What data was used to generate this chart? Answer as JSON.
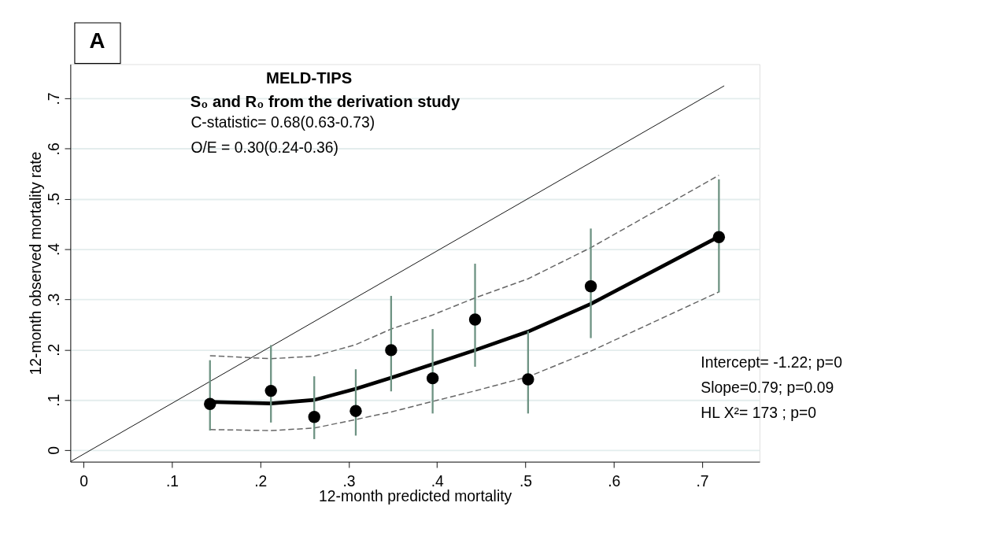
{
  "chart_data": {
    "type": "scatter",
    "title": "MELD-TIPS",
    "subtitle": "S₀ and R₀ from the derivation study",
    "xlabel": "12-month predicted mortality",
    "ylabel": "12-month observed mortality rate",
    "annotations": [
      "A",
      "C-statistic= 0.68(0.63-0.73)",
      "O/E = 0.30(0.24-0.36)",
      "Intercept= -1.22; p=0",
      "Slope=0.79; p=0.09",
      "HL X²= 173 ; p=0"
    ],
    "xlim": [
      -0.015,
      0.765
    ],
    "ylim": [
      -0.023,
      0.768
    ],
    "xticks": [
      0,
      {
        "value": 0.1,
        "label": ".1"
      },
      {
        "value": 0.2,
        "label": ".2"
      },
      {
        "value": 0.3,
        "label": ".3"
      },
      {
        "value": 0.4,
        "label": ".4"
      },
      {
        "value": 0.5,
        "label": ".5"
      },
      {
        "value": 0.6,
        "label": ".6"
      },
      {
        "value": 0.7,
        "label": ".7"
      }
    ],
    "yticks": [
      0,
      {
        "value": 0.1,
        "label": ".1"
      },
      {
        "value": 0.2,
        "label": ".2"
      },
      {
        "value": 0.3,
        "label": ".3"
      },
      {
        "value": 0.4,
        "label": ".4"
      },
      {
        "value": 0.5,
        "label": ".5"
      },
      {
        "value": 0.6,
        "label": ".6"
      },
      {
        "value": 0.7,
        "label": ".7"
      }
    ],
    "grid": "y",
    "series": [
      {
        "type": "line",
        "color": "#000000",
        "line_style": "solid",
        "x": [
          -0.015,
          0.725
        ],
        "values": [
          -0.023,
          0.725
        ]
      },
      {
        "type": "line",
        "color": "#000000",
        "line_style": "solid",
        "x": [
          0.143,
          0.212,
          0.261,
          0.308,
          0.348,
          0.395,
          0.443,
          0.503,
          0.574,
          0.719
        ],
        "values": [
          0.096,
          0.093,
          0.1,
          0.122,
          0.144,
          0.171,
          0.199,
          0.236,
          0.291,
          0.425
        ]
      },
      {
        "type": "line",
        "color": "#666666",
        "line_style": "dashed",
        "x": [
          0.143,
          0.212,
          0.261,
          0.308,
          0.348,
          0.395,
          0.443,
          0.503,
          0.574,
          0.719
        ],
        "values": [
          0.188,
          0.182,
          0.187,
          0.21,
          0.241,
          0.269,
          0.303,
          0.341,
          0.403,
          0.547
        ]
      },
      {
        "type": "line",
        "color": "#666666",
        "line_style": "dashed",
        "x": [
          0.143,
          0.212,
          0.261,
          0.308,
          0.348,
          0.395,
          0.443,
          0.503,
          0.574,
          0.719
        ],
        "values": [
          0.041,
          0.039,
          0.044,
          0.061,
          0.076,
          0.097,
          0.118,
          0.146,
          0.197,
          0.315
        ]
      },
      {
        "color": "#000000",
        "marker": "circle",
        "x": [
          0.143,
          0.212,
          0.261,
          0.308,
          0.348,
          0.395,
          0.443,
          0.503,
          0.574,
          0.719
        ],
        "values": [
          0.092,
          0.118,
          0.066,
          0.078,
          0.199,
          0.143,
          0.26,
          0.141,
          0.326,
          0.424
        ],
        "errors": [
          [
            0.039,
            0.179
          ],
          [
            0.055,
            0.209
          ],
          [
            0.022,
            0.147
          ],
          [
            0.029,
            0.161
          ],
          [
            0.117,
            0.307
          ],
          [
            0.073,
            0.241
          ],
          [
            0.166,
            0.371
          ],
          [
            0.073,
            0.237
          ],
          [
            0.223,
            0.441
          ],
          [
            0.314,
            0.539
          ]
        ]
      }
    ]
  }
}
